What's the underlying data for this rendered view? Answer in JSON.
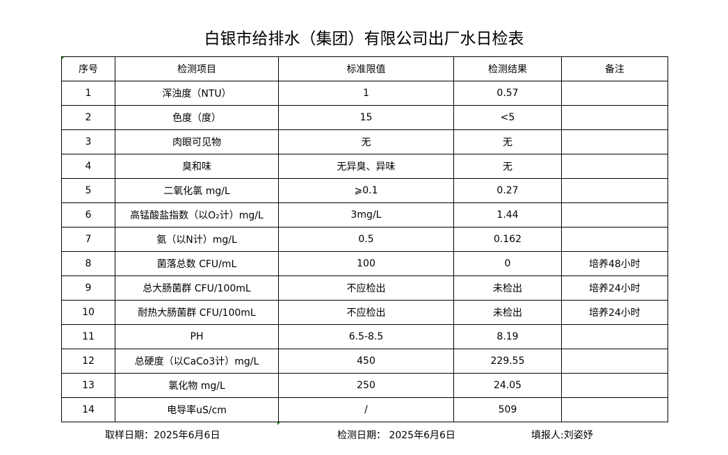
{
  "title": "白银市给排水（集团）有限公司出厂水日检表",
  "headers": [
    "序号",
    "检测项目",
    "标准限值",
    "检测结果",
    "备注"
  ],
  "rows": [
    [
      "1",
      "浑浊度（NTU）",
      "1",
      "0.57",
      ""
    ],
    [
      "2",
      "色度（度）",
      "15",
      "<5",
      ""
    ],
    [
      "3",
      "肉眼可见物",
      "无",
      "无",
      ""
    ],
    [
      "4",
      "臭和味",
      "无异臭、异味",
      "无",
      ""
    ],
    [
      "5",
      "二氧化氯 mg/L",
      "⩾0.1",
      "0.27",
      ""
    ],
    [
      "6",
      "高锰酸盐指数（以O₂计）mg/L",
      "3mg/L",
      "1.44",
      ""
    ],
    [
      "7",
      "氨（以N计）mg/L",
      "0.5",
      "0.162",
      ""
    ],
    [
      "8",
      "菌落总数 CFU/mL",
      "100",
      "0",
      "培养48小时"
    ],
    [
      "9",
      "总大肠菌群 CFU/100mL",
      "不应检出",
      "未检出",
      "培养24小时"
    ],
    [
      "10",
      "耐热大肠菌群 CFU/100mL",
      "不应检出",
      "未检出",
      "培养24小时"
    ],
    [
      "11",
      "PH",
      "6.5-8.5",
      "8.19",
      ""
    ],
    [
      "12",
      "总硬度（以CaCo3计）mg/L",
      "450",
      "229.55",
      ""
    ],
    [
      "13",
      "氯化物 mg/L",
      "250",
      "24.05",
      ""
    ],
    [
      "14",
      "电导率uS/cm",
      "/",
      "509",
      ""
    ]
  ],
  "footer": {
    "sampling_date": "取样日期：2025年6月6日",
    "test_date": "检测日期： 2025年6月6日",
    "reporter": "填报人:刘姿妤"
  }
}
